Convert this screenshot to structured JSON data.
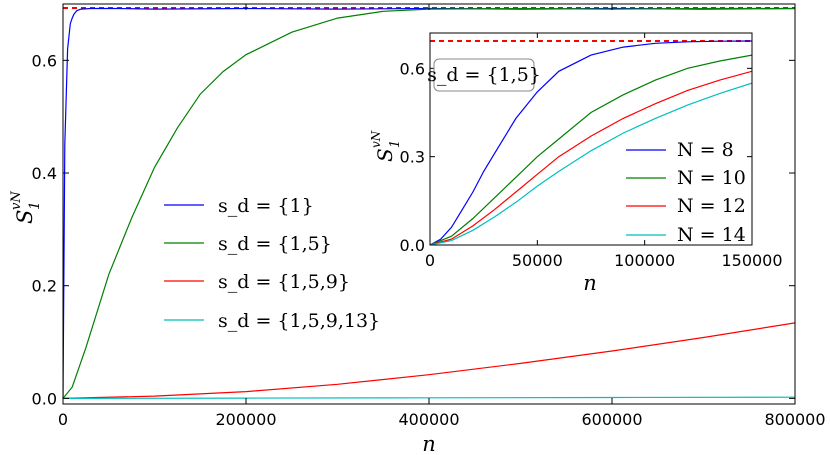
{
  "chart_data": [
    {
      "id": "main",
      "type": "line",
      "xlabel": "n",
      "ylabel": "S_1^{vN}",
      "ylabel_main": "S",
      "ylabel_sub": "1",
      "ylabel_sup": "vN",
      "xlim": [
        0,
        800000
      ],
      "ylim": [
        -0.01,
        0.7
      ],
      "xticks": [
        0,
        200000,
        400000,
        600000,
        800000
      ],
      "xtick_labels": [
        "0",
        "200000",
        "400000",
        "600000",
        "800000"
      ],
      "yticks": [
        0.0,
        0.2,
        0.4,
        0.6
      ],
      "ytick_labels": [
        "0.0",
        "0.2",
        "0.4",
        "0.6"
      ],
      "reference_line": {
        "y": 0.693,
        "color": "#ff0000",
        "style": "dashed"
      },
      "legend_position": "center-left",
      "series": [
        {
          "name": "s_d = {1}",
          "legend_label": "s_d = {1}",
          "color": "#0000ff",
          "x": [
            0,
            2000,
            5000,
            8000,
            10000,
            12000,
            15000,
            18000,
            20000,
            30000,
            60000,
            100000,
            200000,
            300000,
            400000,
            500000,
            600000,
            700000,
            800000
          ],
          "y": [
            0.0,
            0.45,
            0.62,
            0.665,
            0.675,
            0.682,
            0.688,
            0.69,
            0.691,
            0.692,
            0.692,
            0.691,
            0.692,
            0.691,
            0.692,
            0.691,
            0.692,
            0.691,
            0.692
          ]
        },
        {
          "name": "s_d = {1,5}",
          "legend_label": "s_d = {1,5}",
          "color": "#008000",
          "x": [
            0,
            10000,
            25000,
            50000,
            75000,
            100000,
            125000,
            150000,
            175000,
            200000,
            250000,
            300000,
            350000,
            400000,
            500000,
            600000,
            700000,
            800000
          ],
          "y": [
            0.0,
            0.02,
            0.09,
            0.22,
            0.32,
            0.41,
            0.48,
            0.54,
            0.58,
            0.61,
            0.65,
            0.675,
            0.687,
            0.691,
            0.692,
            0.691,
            0.692,
            0.692
          ]
        },
        {
          "name": "s_d = {1,5,9}",
          "legend_label": "s_d = {1,5,9}",
          "color": "#ff0000",
          "x": [
            0,
            100000,
            200000,
            300000,
            400000,
            500000,
            600000,
            700000,
            800000
          ],
          "y": [
            0.0,
            0.004,
            0.012,
            0.025,
            0.042,
            0.062,
            0.084,
            0.108,
            0.134
          ]
        },
        {
          "name": "s_d = {1,5,9,13}",
          "legend_label": "s_d = {1,5,9,13}",
          "color": "#00bfbf",
          "x": [
            0,
            200000,
            400000,
            600000,
            800000
          ],
          "y": [
            0.0,
            0.0005,
            0.001,
            0.0015,
            0.002
          ]
        }
      ]
    },
    {
      "id": "inset",
      "type": "line",
      "xlabel": "n",
      "ylabel": "S_1^{vN}",
      "ylabel_main": "S",
      "ylabel_sub": "1",
      "ylabel_sup": "vN",
      "annotation": "s_d = {1,5}",
      "xlim": [
        0,
        150000
      ],
      "ylim": [
        0.0,
        0.72
      ],
      "xticks": [
        0,
        50000,
        100000,
        150000
      ],
      "xtick_labels": [
        "0",
        "50000",
        "100000",
        "150000"
      ],
      "yticks": [
        0.0,
        0.3,
        0.6
      ],
      "ytick_labels": [
        "0.0",
        "0.3",
        "0.6"
      ],
      "reference_line": {
        "y": 0.693,
        "color": "#ff0000",
        "style": "dashed"
      },
      "legend_position": "lower-right",
      "series": [
        {
          "name": "N = 8",
          "legend_label": "N = 8",
          "color": "#0000ff",
          "x": [
            0,
            5000,
            10000,
            15000,
            20000,
            25000,
            30000,
            40000,
            50000,
            60000,
            75000,
            90000,
            105000,
            120000,
            135000,
            150000
          ],
          "y": [
            0.0,
            0.02,
            0.06,
            0.12,
            0.18,
            0.25,
            0.31,
            0.43,
            0.52,
            0.59,
            0.645,
            0.672,
            0.685,
            0.69,
            0.692,
            0.693
          ]
        },
        {
          "name": "N = 10",
          "legend_label": "N = 10",
          "color": "#008000",
          "x": [
            0,
            10000,
            20000,
            30000,
            40000,
            50000,
            60000,
            75000,
            90000,
            105000,
            120000,
            135000,
            150000
          ],
          "y": [
            0.0,
            0.03,
            0.09,
            0.16,
            0.23,
            0.3,
            0.36,
            0.45,
            0.51,
            0.56,
            0.6,
            0.625,
            0.645
          ]
        },
        {
          "name": "N = 12",
          "legend_label": "N = 12",
          "color": "#ff0000",
          "x": [
            0,
            10000,
            20000,
            30000,
            40000,
            50000,
            60000,
            75000,
            90000,
            105000,
            120000,
            135000,
            150000
          ],
          "y": [
            0.0,
            0.02,
            0.065,
            0.12,
            0.18,
            0.24,
            0.3,
            0.37,
            0.43,
            0.48,
            0.525,
            0.56,
            0.59
          ]
        },
        {
          "name": "N = 14",
          "legend_label": "N = 14",
          "color": "#00bfbf",
          "x": [
            0,
            10000,
            20000,
            30000,
            40000,
            50000,
            60000,
            75000,
            90000,
            105000,
            120000,
            135000,
            150000
          ],
          "y": [
            0.0,
            0.015,
            0.05,
            0.095,
            0.145,
            0.2,
            0.25,
            0.32,
            0.38,
            0.43,
            0.475,
            0.515,
            0.55
          ]
        }
      ]
    }
  ]
}
